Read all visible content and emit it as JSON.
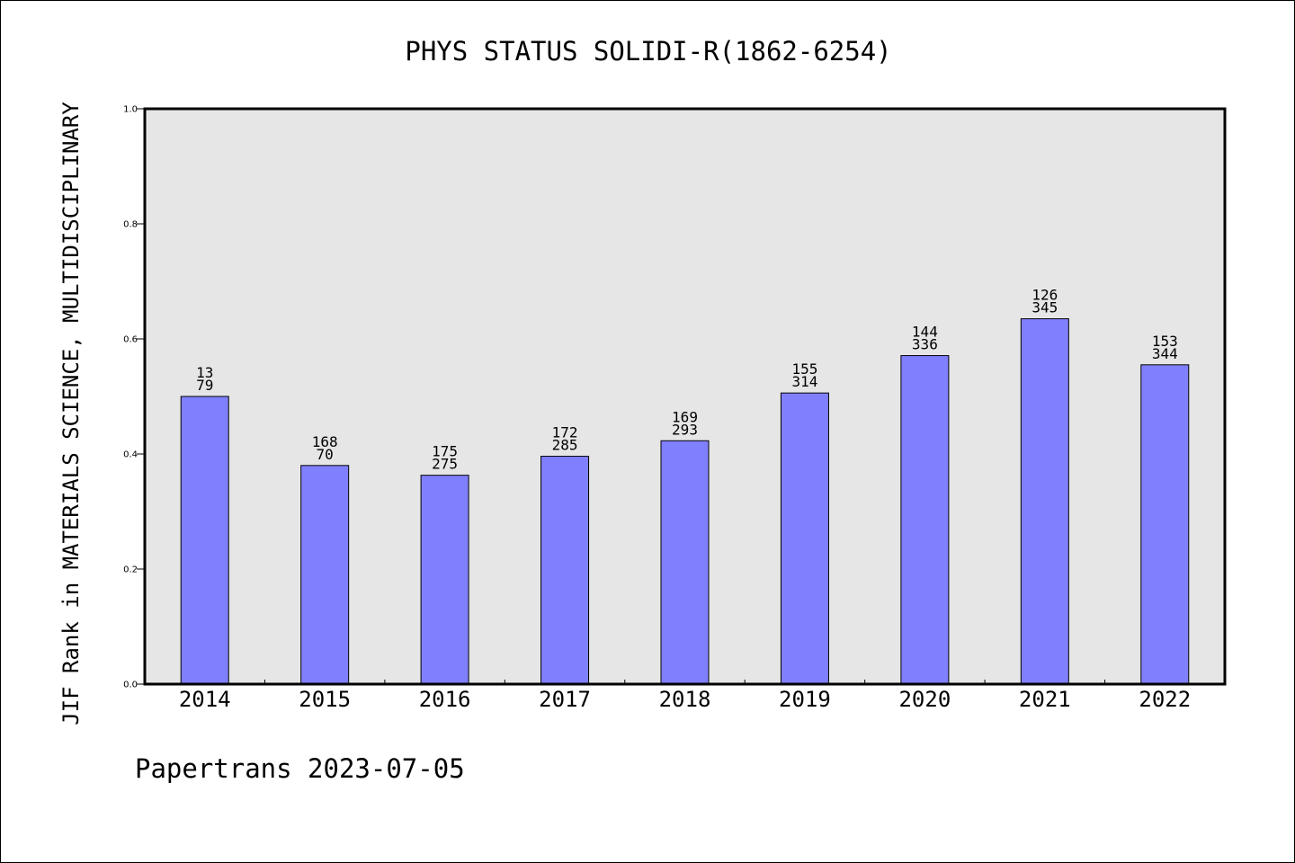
{
  "colors": {
    "plot_background": "#e6e6e6",
    "bar_fill": "#8080ff",
    "bar_stroke": "#000000",
    "axis": "#000000",
    "text": "#000000"
  },
  "chart_data": {
    "type": "bar",
    "title": "PHYS STATUS SOLIDI-R(1862-6254)",
    "xlabel": "",
    "ylabel": "JIF Rank in MATERIALS SCIENCE, MULTIDISCIPLINARY",
    "ylim": [
      0,
      1.0
    ],
    "yticks": [
      "0.0",
      "0.2",
      "0.4",
      "0.6",
      "0.8",
      "1.0"
    ],
    "grid": false,
    "legend": "none",
    "categories": [
      "2014",
      "2015",
      "2016",
      "2017",
      "2018",
      "2019",
      "2020",
      "2021",
      "2022"
    ],
    "values": [
      0.5,
      0.38,
      0.363,
      0.396,
      0.423,
      0.506,
      0.571,
      0.635,
      0.555
    ],
    "rank_labels": [
      "13",
      "168",
      "175",
      "172",
      "169",
      "155",
      "144",
      "126",
      "153"
    ],
    "total_labels": [
      "79",
      "70",
      "275",
      "285",
      "293",
      "314",
      "336",
      "345",
      "344"
    ]
  },
  "footer": {
    "text": "Papertrans 2023-07-05"
  }
}
